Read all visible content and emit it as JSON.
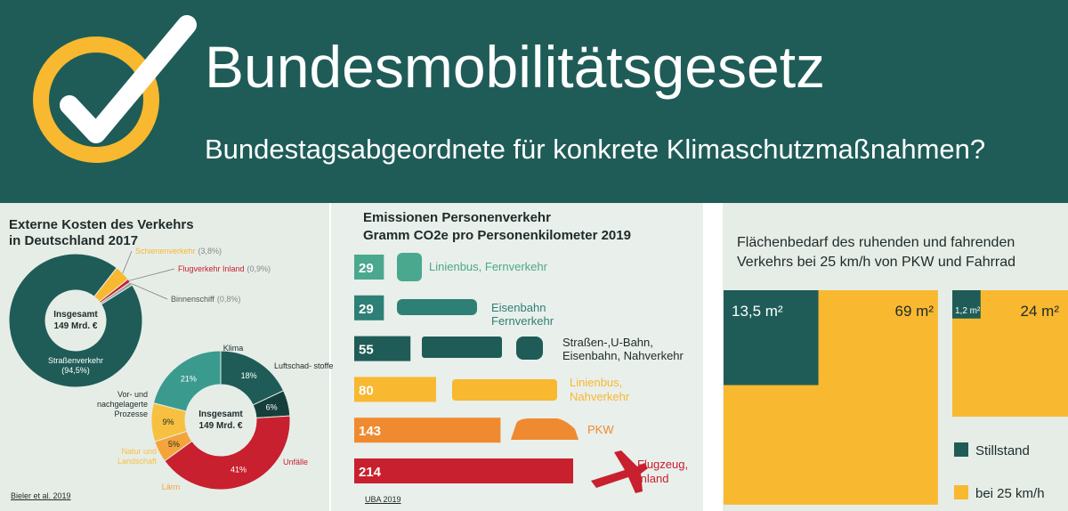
{
  "header": {
    "title": "Bundesmobilitätsgesetz",
    "subtitle": "Bundestagsabgeordnete für konkrete Klimaschutzmaßnahmen?"
  },
  "chart_data": [
    {
      "type": "donut",
      "title": "Externe Kosten des Verkehrs in Deutschland 2017",
      "center_label": [
        "Insgesamt",
        "149 Mrd. €"
      ],
      "categories": [
        "Straßenverkehr",
        "Schienenverkehr",
        "Flugverkehr Inland",
        "Binnenschiff"
      ],
      "values": [
        94.5,
        3.8,
        0.9,
        0.8
      ],
      "value_labels": [
        "(94,5%)",
        "(3,8%)",
        "(0,9%)",
        "(0,8%)"
      ],
      "colors": [
        "#1f5c57",
        "#f8b830",
        "#c8202e",
        "#9aa5a3"
      ],
      "source": "Bieler et al. 2019"
    },
    {
      "type": "donut",
      "center_label": [
        "Insgesamt",
        "149 Mrd. €"
      ],
      "categories": [
        "Klima",
        "Luftschad- stoffe",
        "Unfälle",
        "Lärm",
        "Natur und Landschaft",
        "Vor- und nachgelagerte Prozesse"
      ],
      "values": [
        18,
        6,
        41,
        5,
        9,
        21
      ],
      "value_labels": [
        "18%",
        "6%",
        "41%",
        "5%",
        "9%",
        "21%"
      ],
      "colors": [
        "#1f5c57",
        "#163f3c",
        "#c8202e",
        "#f4a43a",
        "#f8c040",
        "#3a9a8e"
      ]
    },
    {
      "type": "bar",
      "title": "Emissionen Personenverkehr",
      "subtitle": "Gramm CO2e pro Personenkilometer 2019",
      "categories": [
        "Linienbus, Fernverkehr",
        "Eisenbahn Fernverkehr",
        "Straßen-,U-Bahn, Eisenbahn, Nahverkehr",
        "Linienbus, Nahverkehr",
        "PKW",
        "Flugzeug, Inland"
      ],
      "values": [
        29,
        29,
        55,
        80,
        143,
        214
      ],
      "colors": [
        "#4aa88f",
        "#2e7f76",
        "#1f5c57",
        "#f8b830",
        "#f08a30",
        "#c8202e"
      ],
      "source": "UBA 2019"
    },
    {
      "type": "area-squares",
      "title": "Flächenbedarf des ruhenden und fahrenden Verkehrs bei 25 km/h von PKW und Fahrrad",
      "series": [
        {
          "name": "Stillstand",
          "color": "#1f5c57",
          "values": [
            13.5,
            1.2
          ],
          "value_labels": [
            "13,5 m²",
            "1,2 m²"
          ]
        },
        {
          "name": "bei 25 km/h",
          "color": "#f8b830",
          "values": [
            69,
            24
          ],
          "value_labels": [
            "69 m²",
            "24 m²"
          ]
        }
      ]
    }
  ]
}
